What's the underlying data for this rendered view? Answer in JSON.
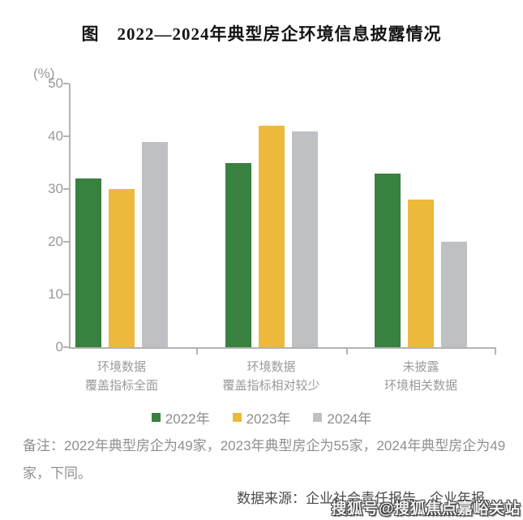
{
  "title": "图　2022—2024年典型房企环境信息披露情况",
  "chart_data": {
    "type": "bar",
    "title": "图 2022—2024年典型房企环境信息披露情况",
    "unit_label": "(%)",
    "ylabel": "(%)",
    "ylim": [
      0,
      50
    ],
    "yticks": [
      0,
      10,
      20,
      30,
      40,
      50
    ],
    "grid": "off",
    "legend_position": "bottom",
    "categories": [
      [
        "环境数据",
        "覆盖指标全面"
      ],
      [
        "环境数据",
        "覆盖指标相对较少"
      ],
      [
        "未披露",
        "环境相关数据"
      ]
    ],
    "series": [
      {
        "name": "2022年",
        "color": "#38813F",
        "values": [
          32,
          35,
          33
        ]
      },
      {
        "name": "2023年",
        "color": "#EDB93B",
        "values": [
          30,
          42,
          28
        ]
      },
      {
        "name": "2024年",
        "color": "#BFC0C4",
        "values": [
          39,
          41,
          20
        ]
      }
    ]
  },
  "notes": "备注：2022年典型房企为49家，2023年典型房企为55家，2024年典型房企为49家，下同。",
  "source": "数据来源：企业社会责任报告、企业年报。",
  "watermark": "搜狐号@搜狐焦点嘉峪关站"
}
